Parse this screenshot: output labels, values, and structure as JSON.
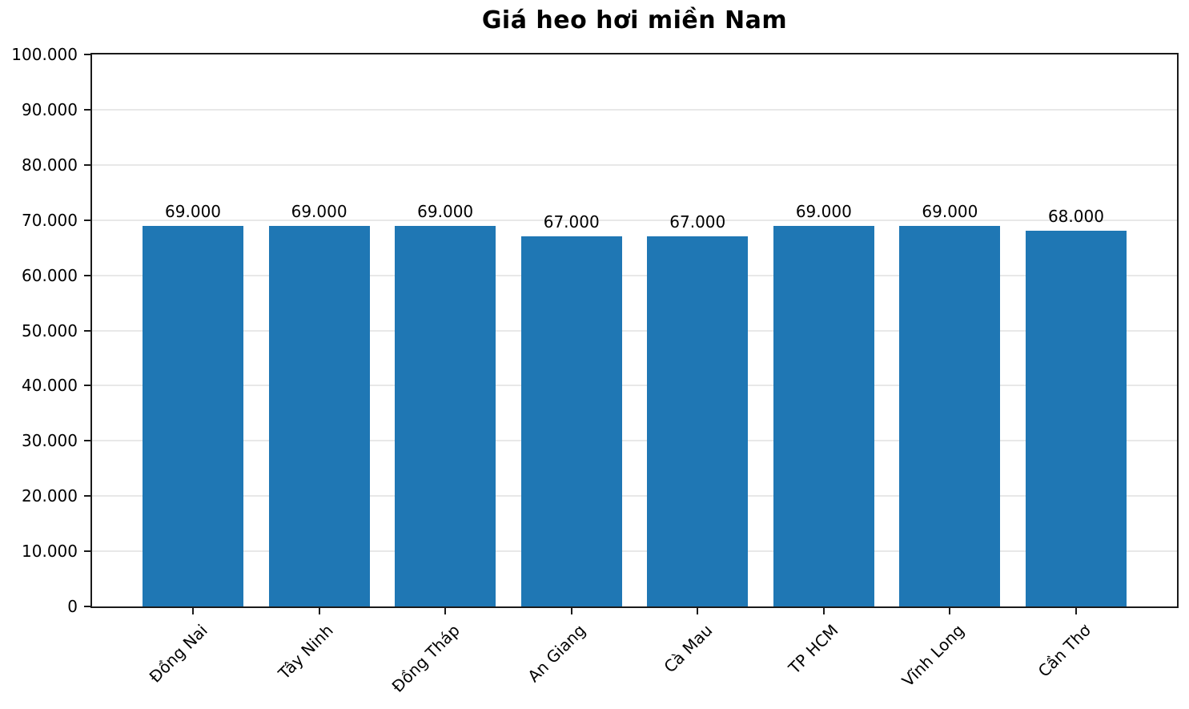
{
  "chart_data": {
    "type": "bar",
    "title": "Giá heo hơi miền Nam",
    "categories": [
      "Đồng Nai",
      "Tây Ninh",
      "Đồng Tháp",
      "An Giang",
      "Cà Mau",
      "TP HCM",
      "Vĩnh Long",
      "Cần Thơ"
    ],
    "values": [
      69000,
      69000,
      69000,
      67000,
      67000,
      69000,
      69000,
      68000
    ],
    "value_labels": [
      "69.000",
      "69.000",
      "69.000",
      "67.000",
      "67.000",
      "69.000",
      "69.000",
      "68.000"
    ],
    "xlabel": "",
    "ylabel": "",
    "ylim": [
      0,
      100000
    ],
    "ytick_step": 10000,
    "ytick_labels": [
      "0",
      "10.000",
      "20.000",
      "30.000",
      "40.000",
      "50.000",
      "60.000",
      "70.000",
      "80.000",
      "90.000",
      "100.000"
    ],
    "xlim": [
      -0.8,
      7.8
    ],
    "bar_width_units": 0.8,
    "x_rotation_deg": 45,
    "grid": "horizontal",
    "legend_position": "none",
    "bar_color": "#1f77b4",
    "grid_color": "#e8e8e8",
    "spine_color": "#1a1a1a",
    "text_color": "#000000"
  }
}
